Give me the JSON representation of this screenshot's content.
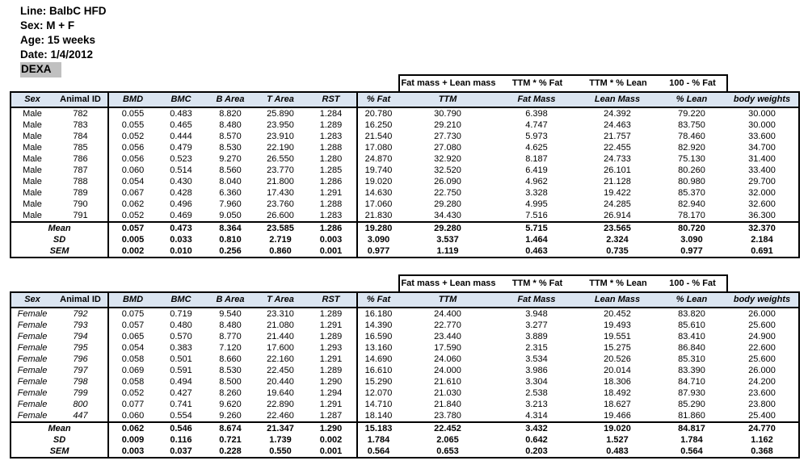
{
  "meta": {
    "line": "Line: BalbC HFD",
    "sex": "Sex: M + F",
    "age": "Age: 15 weeks",
    "date": "Date: 1/4/2012",
    "assay": "DEXA"
  },
  "formula_labels": [
    "Fat mass + Lean mass",
    "TTM * % Fat",
    "TTM * % Lean",
    "100 - % Fat"
  ],
  "columns": [
    "Sex",
    "Animal ID",
    "BMD",
    "BMC",
    "B Area",
    "T Area",
    "RST",
    "% Fat",
    "TTM",
    "Fat Mass",
    "Lean Mass",
    "% Lean",
    "body weights"
  ],
  "colors": {
    "header_bg": "#dbe5f1",
    "assay_bg": "#c0c0c0",
    "border": "#000000"
  },
  "tables": [
    {
      "name": "male",
      "rows": [
        [
          "Male",
          "782",
          "0.055",
          "0.483",
          "8.820",
          "25.890",
          "1.284",
          "20.780",
          "30.790",
          "6.398",
          "24.392",
          "79.220",
          "30.000"
        ],
        [
          "Male",
          "783",
          "0.055",
          "0.465",
          "8.480",
          "23.950",
          "1.289",
          "16.250",
          "29.210",
          "4.747",
          "24.463",
          "83.750",
          "30.000"
        ],
        [
          "Male",
          "784",
          "0.052",
          "0.444",
          "8.570",
          "23.910",
          "1.283",
          "21.540",
          "27.730",
          "5.973",
          "21.757",
          "78.460",
          "33.600"
        ],
        [
          "Male",
          "785",
          "0.056",
          "0.479",
          "8.530",
          "22.190",
          "1.288",
          "17.080",
          "27.080",
          "4.625",
          "22.455",
          "82.920",
          "34.700"
        ],
        [
          "Male",
          "786",
          "0.056",
          "0.523",
          "9.270",
          "26.550",
          "1.280",
          "24.870",
          "32.920",
          "8.187",
          "24.733",
          "75.130",
          "31.400"
        ],
        [
          "Male",
          "787",
          "0.060",
          "0.514",
          "8.560",
          "23.770",
          "1.285",
          "19.740",
          "32.520",
          "6.419",
          "26.101",
          "80.260",
          "33.400"
        ],
        [
          "Male",
          "788",
          "0.054",
          "0.430",
          "8.040",
          "21.800",
          "1.286",
          "19.020",
          "26.090",
          "4.962",
          "21.128",
          "80.980",
          "29.700"
        ],
        [
          "Male",
          "789",
          "0.067",
          "0.428",
          "6.360",
          "17.430",
          "1.291",
          "14.630",
          "22.750",
          "3.328",
          "19.422",
          "85.370",
          "32.000"
        ],
        [
          "Male",
          "790",
          "0.062",
          "0.496",
          "7.960",
          "23.760",
          "1.288",
          "17.060",
          "29.280",
          "4.995",
          "24.285",
          "82.940",
          "32.600"
        ],
        [
          "Male",
          "791",
          "0.052",
          "0.469",
          "9.050",
          "26.600",
          "1.283",
          "21.830",
          "34.430",
          "7.516",
          "26.914",
          "78.170",
          "36.300"
        ]
      ],
      "stats": [
        [
          "Mean",
          "0.057",
          "0.473",
          "8.364",
          "23.585",
          "1.286",
          "19.280",
          "29.280",
          "5.715",
          "23.565",
          "80.720",
          "32.370"
        ],
        [
          "SD",
          "0.005",
          "0.033",
          "0.810",
          "2.719",
          "0.003",
          "3.090",
          "3.537",
          "1.464",
          "2.324",
          "3.090",
          "2.184"
        ],
        [
          "SEM",
          "0.002",
          "0.010",
          "0.256",
          "0.860",
          "0.001",
          "0.977",
          "1.119",
          "0.463",
          "0.735",
          "0.977",
          "0.691"
        ]
      ]
    },
    {
      "name": "female",
      "rows": [
        [
          "Female",
          "792",
          "0.075",
          "0.719",
          "9.540",
          "23.310",
          "1.289",
          "16.180",
          "24.400",
          "3.948",
          "20.452",
          "83.820",
          "26.000"
        ],
        [
          "Female",
          "793",
          "0.057",
          "0.480",
          "8.480",
          "21.080",
          "1.291",
          "14.390",
          "22.770",
          "3.277",
          "19.493",
          "85.610",
          "25.600"
        ],
        [
          "Female",
          "794",
          "0.065",
          "0.570",
          "8.770",
          "21.440",
          "1.289",
          "16.590",
          "23.440",
          "3.889",
          "19.551",
          "83.410",
          "24.900"
        ],
        [
          "Female",
          "795",
          "0.054",
          "0.383",
          "7.120",
          "17.600",
          "1.293",
          "13.160",
          "17.590",
          "2.315",
          "15.275",
          "86.840",
          "22.600"
        ],
        [
          "Female",
          "796",
          "0.058",
          "0.501",
          "8.660",
          "22.160",
          "1.291",
          "14.690",
          "24.060",
          "3.534",
          "20.526",
          "85.310",
          "25.600"
        ],
        [
          "Female",
          "797",
          "0.069",
          "0.591",
          "8.530",
          "22.450",
          "1.289",
          "16.610",
          "24.000",
          "3.986",
          "20.014",
          "83.390",
          "26.000"
        ],
        [
          "Female",
          "798",
          "0.058",
          "0.494",
          "8.500",
          "20.440",
          "1.290",
          "15.290",
          "21.610",
          "3.304",
          "18.306",
          "84.710",
          "24.200"
        ],
        [
          "Female",
          "799",
          "0.052",
          "0.427",
          "8.260",
          "19.640",
          "1.294",
          "12.070",
          "21.030",
          "2.538",
          "18.492",
          "87.930",
          "23.600"
        ],
        [
          "Female",
          "800",
          "0.077",
          "0.741",
          "9.620",
          "22.890",
          "1.291",
          "14.710",
          "21.840",
          "3.213",
          "18.627",
          "85.290",
          "23.800"
        ],
        [
          "Female",
          "447",
          "0.060",
          "0.554",
          "9.260",
          "22.460",
          "1.287",
          "18.140",
          "23.780",
          "4.314",
          "19.466",
          "81.860",
          "25.400"
        ]
      ],
      "stats": [
        [
          "Mean",
          "0.062",
          "0.546",
          "8.674",
          "21.347",
          "1.290",
          "15.183",
          "22.452",
          "3.432",
          "19.020",
          "84.817",
          "24.770"
        ],
        [
          "SD",
          "0.009",
          "0.116",
          "0.721",
          "1.739",
          "0.002",
          "1.784",
          "2.065",
          "0.642",
          "1.527",
          "1.784",
          "1.162"
        ],
        [
          "SEM",
          "0.003",
          "0.037",
          "0.228",
          "0.550",
          "0.001",
          "0.564",
          "0.653",
          "0.203",
          "0.483",
          "0.564",
          "0.368"
        ]
      ]
    }
  ]
}
